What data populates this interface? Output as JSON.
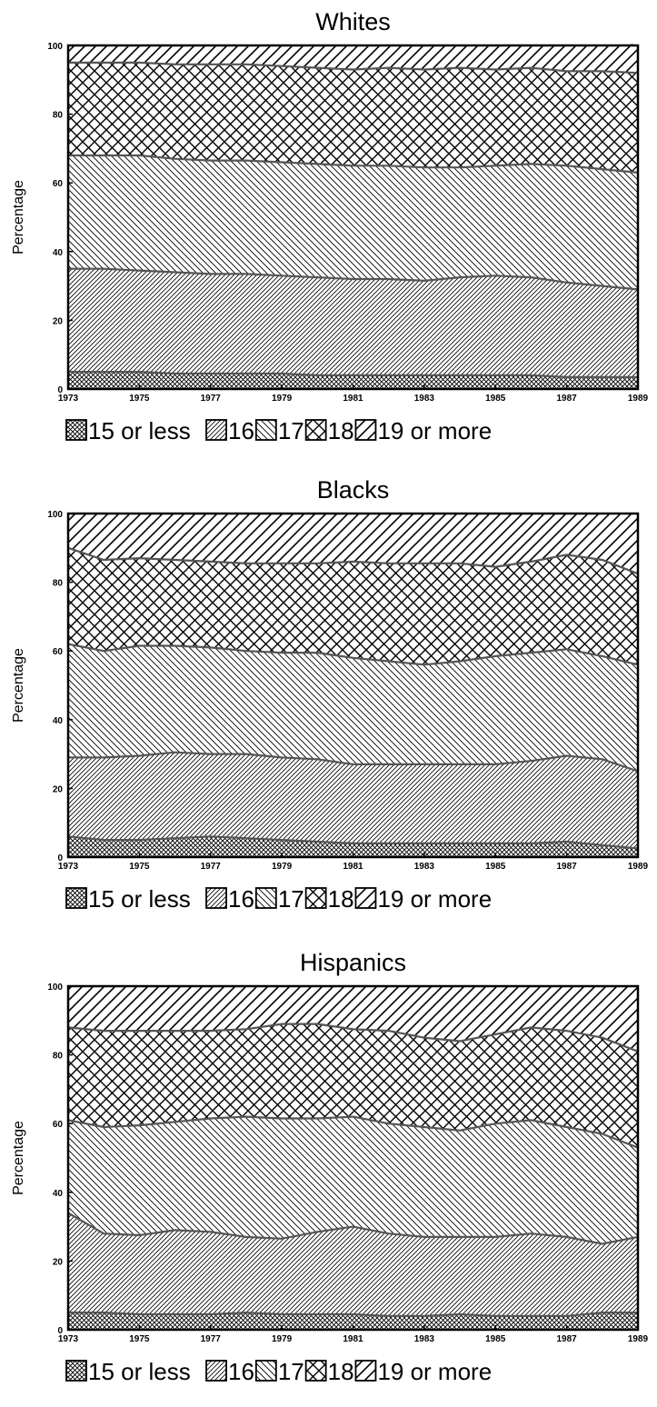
{
  "chart_data": [
    {
      "type": "area",
      "stacked": true,
      "title": "Whites",
      "xlabel": "",
      "ylabel": "Percentage",
      "xlim": [
        1973,
        1989
      ],
      "ylim": [
        0,
        100
      ],
      "x": [
        1973,
        1974,
        1975,
        1976,
        1977,
        1978,
        1979,
        1980,
        1981,
        1982,
        1983,
        1984,
        1985,
        1986,
        1987,
        1988,
        1989
      ],
      "x_tick_labels": [
        "1973",
        "1975",
        "1977",
        "1979",
        "1981",
        "1983",
        "1985",
        "1987",
        "1989"
      ],
      "y_tick_labels": [
        "0",
        "20",
        "40",
        "60",
        "80",
        "100"
      ],
      "legend": [
        "15 or less",
        "16",
        "17",
        "18",
        "19 or more"
      ],
      "series": [
        {
          "name": "15 or less",
          "pattern": "crosshatch-fine",
          "values": [
            5,
            5,
            5,
            4.5,
            4.5,
            4.5,
            4.5,
            4,
            4,
            4,
            4,
            4,
            4,
            4,
            3.5,
            3.5,
            3.5
          ]
        },
        {
          "name": "16",
          "pattern": "diag-up",
          "values": [
            30,
            30,
            29.5,
            29.5,
            29,
            29,
            28.5,
            28.5,
            28,
            28,
            27.5,
            28.5,
            29,
            28.5,
            27.5,
            26.5,
            25.5
          ]
        },
        {
          "name": "17",
          "pattern": "diag-down",
          "values": [
            33,
            33,
            33.5,
            33,
            33,
            33,
            33,
            33,
            33,
            33,
            33,
            32,
            32,
            33,
            34,
            34,
            34
          ]
        },
        {
          "name": "18",
          "pattern": "crosshatch",
          "values": [
            27,
            27,
            27,
            27.5,
            28,
            28,
            28,
            28,
            28,
            28.5,
            28.5,
            29,
            28,
            28,
            27.5,
            28.5,
            29
          ]
        },
        {
          "name": "19 or more",
          "pattern": "diag-up-sparse",
          "values": [
            5,
            5,
            5,
            5.5,
            5.5,
            5.5,
            6,
            6.5,
            7,
            6.5,
            7,
            6.5,
            7,
            6.5,
            7.5,
            7.5,
            8.5
          ]
        }
      ]
    },
    {
      "type": "area",
      "stacked": true,
      "title": "Blacks",
      "xlabel": "",
      "ylabel": "Percentage",
      "xlim": [
        1973,
        1989
      ],
      "ylim": [
        0,
        100
      ],
      "x": [
        1973,
        1974,
        1975,
        1976,
        1977,
        1978,
        1979,
        1980,
        1981,
        1982,
        1983,
        1984,
        1985,
        1986,
        1987,
        1988,
        1989
      ],
      "x_tick_labels": [
        "1973",
        "1975",
        "1977",
        "1979",
        "1981",
        "1983",
        "1985",
        "1987",
        "1989"
      ],
      "y_tick_labels": [
        "0",
        "20",
        "40",
        "60",
        "80",
        "100"
      ],
      "legend": [
        "15 or less",
        "16",
        "17",
        "18",
        "19 or more"
      ],
      "series": [
        {
          "name": "15 or less",
          "pattern": "crosshatch-fine",
          "values": [
            6,
            5,
            5,
            5.5,
            6,
            5.5,
            5,
            4.5,
            4,
            4,
            4,
            4,
            4,
            4,
            4.5,
            3.5,
            2.5
          ]
        },
        {
          "name": "16",
          "pattern": "diag-up",
          "values": [
            23,
            24,
            24.5,
            25,
            24,
            24.5,
            24,
            24,
            23,
            23,
            23,
            23,
            23,
            24,
            25,
            25,
            22.5
          ]
        },
        {
          "name": "17",
          "pattern": "diag-down",
          "values": [
            33,
            31,
            32,
            31,
            31,
            30,
            30.5,
            31,
            31,
            30,
            29,
            30,
            31.5,
            31.5,
            31,
            30,
            31
          ]
        },
        {
          "name": "18",
          "pattern": "crosshatch",
          "values": [
            28,
            26.5,
            25.5,
            25,
            25,
            25.5,
            26,
            26,
            28,
            28.5,
            29.5,
            28.5,
            26,
            26.5,
            27.5,
            28,
            26.5
          ]
        },
        {
          "name": "19 or more",
          "pattern": "diag-up-sparse",
          "values": [
            10,
            13.5,
            13,
            13.5,
            14,
            14.5,
            14.5,
            14.5,
            14,
            14.5,
            14.5,
            14.5,
            15.5,
            14,
            12,
            13.5,
            17.5
          ]
        }
      ]
    },
    {
      "type": "area",
      "stacked": true,
      "title": "Hispanics",
      "xlabel": "",
      "ylabel": "Percentage",
      "xlim": [
        1973,
        1989
      ],
      "ylim": [
        0,
        100
      ],
      "x": [
        1973,
        1974,
        1975,
        1976,
        1977,
        1978,
        1979,
        1980,
        1981,
        1982,
        1983,
        1984,
        1985,
        1986,
        1987,
        1988,
        1989
      ],
      "x_tick_labels": [
        "1973",
        "1975",
        "1977",
        "1979",
        "1981",
        "1983",
        "1985",
        "1987",
        "1989"
      ],
      "y_tick_labels": [
        "0",
        "20",
        "40",
        "60",
        "80",
        "100"
      ],
      "legend": [
        "15 or less",
        "16",
        "17",
        "18",
        "19 or more"
      ],
      "series": [
        {
          "name": "15 or less",
          "pattern": "crosshatch-fine",
          "values": [
            5,
            5,
            4.5,
            4.5,
            4.5,
            5,
            4.5,
            4.5,
            4.5,
            4,
            4,
            4.5,
            4,
            4,
            4,
            5,
            5
          ]
        },
        {
          "name": "16",
          "pattern": "diag-up",
          "values": [
            29,
            23,
            23,
            24.5,
            24,
            22,
            22,
            24,
            25.5,
            24,
            23,
            22.5,
            23,
            24,
            23,
            20,
            22
          ]
        },
        {
          "name": "17",
          "pattern": "diag-down",
          "values": [
            27,
            31,
            32,
            31.5,
            33,
            35,
            35,
            33,
            32,
            32,
            32,
            31,
            33,
            33,
            32,
            32,
            26
          ]
        },
        {
          "name": "18",
          "pattern": "crosshatch",
          "values": [
            27,
            28,
            27.5,
            26.5,
            25.5,
            25.5,
            27.5,
            27.5,
            25.5,
            27,
            26,
            26,
            26,
            27,
            28,
            28,
            28
          ]
        },
        {
          "name": "19 or more",
          "pattern": "diag-up-sparse",
          "values": [
            12,
            13,
            13,
            13,
            13,
            12.5,
            11,
            11,
            12.5,
            13,
            15,
            16,
            14,
            12,
            13,
            15,
            19
          ]
        }
      ]
    }
  ]
}
